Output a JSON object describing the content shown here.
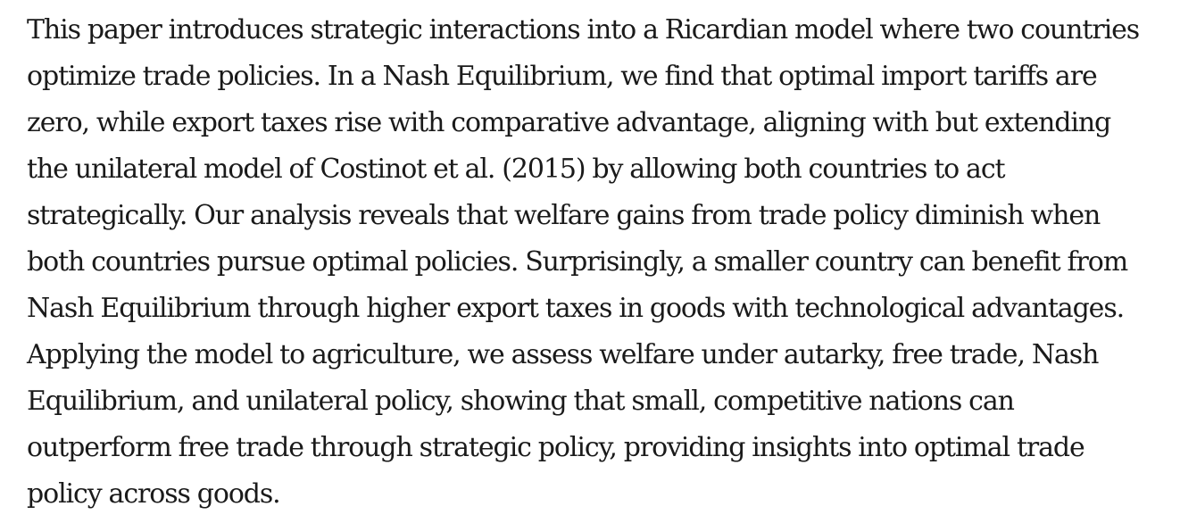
{
  "abstract": {
    "lines": [
      "This paper introduces strategic interactions into a Ricardian model where two countries",
      "optimize trade policies. In a Nash Equilibrium, we find that optimal import tariffs are",
      "zero, while export taxes rise with comparative advantage, aligning with but extending",
      "the unilateral model of Costinot et al. (2015) by allowing both countries to act",
      "strategically. Our analysis reveals that welfare gains from trade policy diminish when",
      "both countries pursue optimal policies. Surprisingly, a smaller country can benefit from",
      "Nash Equilibrium through higher export taxes in goods with technological advantages.",
      "Applying the model to agriculture, we assess welfare under autarky, free trade, Nash",
      "Equilibrium, and unilateral policy, showing that small, competitive nations can",
      "outperform free trade through strategic policy, providing insights into optimal trade",
      "policy across goods."
    ]
  }
}
